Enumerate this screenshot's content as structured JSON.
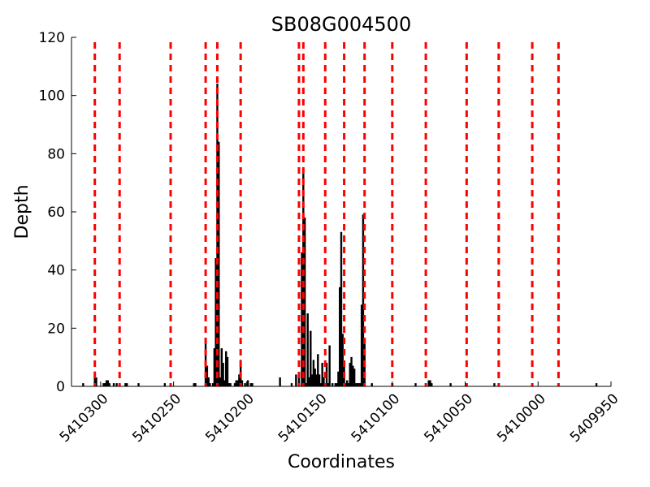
{
  "chart_data": {
    "type": "bar",
    "title": "SB08G004500",
    "xlabel": "Coordinates",
    "ylabel": "Depth",
    "x_reversed": true,
    "xlim": [
      5410320,
      5409950
    ],
    "ylim": [
      0,
      120
    ],
    "x_ticks": [
      5410300,
      5410250,
      5410200,
      5410150,
      5410100,
      5410050,
      5410000,
      5409950
    ],
    "x_tick_labels": [
      "5410300",
      "5410250",
      "5410200",
      "5410150",
      "5410100",
      "5410050",
      "5410000",
      "5409950"
    ],
    "y_ticks": [
      0,
      20,
      40,
      60,
      80,
      100,
      120
    ],
    "y_tick_labels": [
      "0",
      "20",
      "40",
      "60",
      "80",
      "100",
      "120"
    ],
    "grid": false,
    "colors": {
      "bars": "#000000",
      "markers": "#ff0000"
    },
    "series": [
      {
        "values": [
          {
            "x": 5410312,
            "y": 1
          },
          {
            "x": 5410304,
            "y": 5
          },
          {
            "x": 5410303,
            "y": 3
          },
          {
            "x": 5410298,
            "y": 1
          },
          {
            "x": 5410297,
            "y": 1
          },
          {
            "x": 5410296,
            "y": 2
          },
          {
            "x": 5410295,
            "y": 2
          },
          {
            "x": 5410294,
            "y": 1
          },
          {
            "x": 5410291,
            "y": 1
          },
          {
            "x": 5410289,
            "y": 1
          },
          {
            "x": 5410283,
            "y": 1
          },
          {
            "x": 5410282,
            "y": 1
          },
          {
            "x": 5410274,
            "y": 1
          },
          {
            "x": 5410256,
            "y": 1
          },
          {
            "x": 5410236,
            "y": 1
          },
          {
            "x": 5410235,
            "y": 1
          },
          {
            "x": 5410228,
            "y": 15
          },
          {
            "x": 5410227,
            "y": 7
          },
          {
            "x": 5410226,
            "y": 3
          },
          {
            "x": 5410225,
            "y": 1
          },
          {
            "x": 5410223,
            "y": 1
          },
          {
            "x": 5410222,
            "y": 13
          },
          {
            "x": 5410221,
            "y": 44
          },
          {
            "x": 5410220,
            "y": 104
          },
          {
            "x": 5410219,
            "y": 84
          },
          {
            "x": 5410218,
            "y": 3
          },
          {
            "x": 5410217,
            "y": 13
          },
          {
            "x": 5410216,
            "y": 8
          },
          {
            "x": 5410215,
            "y": 2
          },
          {
            "x": 5410214,
            "y": 12
          },
          {
            "x": 5410213,
            "y": 10
          },
          {
            "x": 5410212,
            "y": 1
          },
          {
            "x": 5410211,
            "y": 1
          },
          {
            "x": 5410208,
            "y": 1
          },
          {
            "x": 5410207,
            "y": 2
          },
          {
            "x": 5410206,
            "y": 2
          },
          {
            "x": 5410205,
            "y": 4
          },
          {
            "x": 5410204,
            "y": 9
          },
          {
            "x": 5410203,
            "y": 2
          },
          {
            "x": 5410201,
            "y": 1
          },
          {
            "x": 5410199,
            "y": 2
          },
          {
            "x": 5410197,
            "y": 1
          },
          {
            "x": 5410196,
            "y": 1
          },
          {
            "x": 5410177,
            "y": 3
          },
          {
            "x": 5410169,
            "y": 1
          },
          {
            "x": 5410166,
            "y": 4
          },
          {
            "x": 5410164,
            "y": 4
          },
          {
            "x": 5410162,
            "y": 46
          },
          {
            "x": 5410161,
            "y": 73
          },
          {
            "x": 5410160,
            "y": 58
          },
          {
            "x": 5410159,
            "y": 1
          },
          {
            "x": 5410158,
            "y": 25
          },
          {
            "x": 5410157,
            "y": 3
          },
          {
            "x": 5410156,
            "y": 19
          },
          {
            "x": 5410155,
            "y": 4
          },
          {
            "x": 5410154,
            "y": 9
          },
          {
            "x": 5410153,
            "y": 6
          },
          {
            "x": 5410152,
            "y": 4
          },
          {
            "x": 5410151,
            "y": 11
          },
          {
            "x": 5410150,
            "y": 4
          },
          {
            "x": 5410149,
            "y": 1
          },
          {
            "x": 5410148,
            "y": 8
          },
          {
            "x": 5410147,
            "y": 3
          },
          {
            "x": 5410146,
            "y": 1
          },
          {
            "x": 5410145,
            "y": 8
          },
          {
            "x": 5410144,
            "y": 1
          },
          {
            "x": 5410143,
            "y": 14
          },
          {
            "x": 5410141,
            "y": 1
          },
          {
            "x": 5410139,
            "y": 1
          },
          {
            "x": 5410138,
            "y": 1
          },
          {
            "x": 5410137,
            "y": 5
          },
          {
            "x": 5410136,
            "y": 34
          },
          {
            "x": 5410135,
            "y": 53
          },
          {
            "x": 5410134,
            "y": 18
          },
          {
            "x": 5410133,
            "y": 8
          },
          {
            "x": 5410132,
            "y": 1
          },
          {
            "x": 5410131,
            "y": 2
          },
          {
            "x": 5410130,
            "y": 1
          },
          {
            "x": 5410129,
            "y": 8
          },
          {
            "x": 5410128,
            "y": 10
          },
          {
            "x": 5410127,
            "y": 7
          },
          {
            "x": 5410126,
            "y": 6
          },
          {
            "x": 5410125,
            "y": 1
          },
          {
            "x": 5410124,
            "y": 1
          },
          {
            "x": 5410123,
            "y": 1
          },
          {
            "x": 5410122,
            "y": 1
          },
          {
            "x": 5410121,
            "y": 28
          },
          {
            "x": 5410120,
            "y": 59
          },
          {
            "x": 5410119,
            "y": 15
          },
          {
            "x": 5410114,
            "y": 1
          },
          {
            "x": 5410084,
            "y": 1
          },
          {
            "x": 5410075,
            "y": 2
          },
          {
            "x": 5410074,
            "y": 2
          },
          {
            "x": 5410073,
            "y": 1
          },
          {
            "x": 5410060,
            "y": 1
          },
          {
            "x": 5410030,
            "y": 1
          },
          {
            "x": 5410027,
            "y": 1
          },
          {
            "x": 5409960,
            "y": 1
          }
        ]
      }
    ],
    "markers": [
      5410304,
      5410287,
      5410252,
      5410228,
      5410220,
      5410204,
      5410164,
      5410161,
      5410146,
      5410133,
      5410119,
      5410100,
      5410077,
      5410049,
      5410027,
      5410004,
      5409986
    ]
  }
}
